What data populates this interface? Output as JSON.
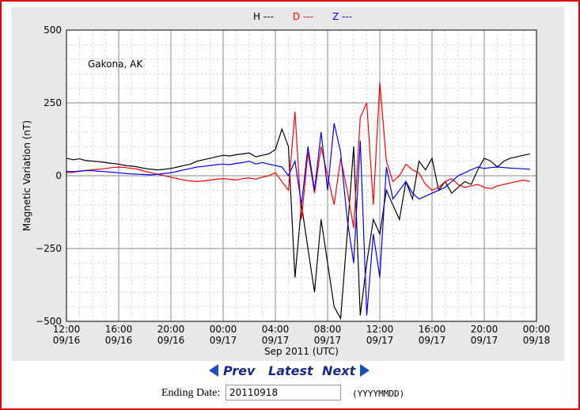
{
  "chart_data": {
    "type": "line",
    "station_label": "Gakona, AK",
    "ylabel": "Magnetic Variation (nT)",
    "xlabel": "Sep 2011 (UTC)",
    "ylim": [
      -500,
      500
    ],
    "yticks": [
      500,
      250,
      0,
      -250,
      -500
    ],
    "ytick_labels": [
      "500",
      "250",
      "0",
      "−250",
      "−500"
    ],
    "xlim": [
      0,
      36
    ],
    "xticks": [
      0,
      4,
      8,
      12,
      16,
      20,
      24,
      28,
      32,
      36
    ],
    "xtick_labels_time": [
      "12:00",
      "16:00",
      "20:00",
      "00:00",
      "04:00",
      "08:00",
      "12:00",
      "16:00",
      "20:00",
      "00:00"
    ],
    "xtick_labels_date": [
      "09/16",
      "09/16",
      "09/16",
      "09/17",
      "09/17",
      "09/17",
      "09/17",
      "09/17",
      "09/17",
      "09/18"
    ],
    "grid": true,
    "legend_position": "top-center",
    "series": [
      {
        "name": "H ---",
        "color": "#000000",
        "x": [
          0,
          0.5,
          1,
          1.5,
          2,
          2.5,
          3,
          3.5,
          4,
          4.5,
          5,
          5.5,
          6,
          6.5,
          7,
          7.5,
          8,
          8.5,
          9,
          9.5,
          10,
          10.5,
          11,
          11.5,
          12,
          12.5,
          13,
          13.5,
          14,
          14.5,
          15,
          15.5,
          16,
          16.5,
          17,
          17.5,
          18,
          18.5,
          19,
          19.5,
          20,
          20.5,
          21,
          21.5,
          22,
          22.5,
          23,
          23.5,
          24,
          24.5,
          25,
          25.5,
          26,
          26.5,
          27,
          27.5,
          28,
          28.5,
          29,
          29.5,
          30,
          30.5,
          31,
          31.5,
          32,
          32.5,
          33,
          33.5,
          34,
          34.5,
          35,
          35.5
        ],
        "y": [
          60,
          55,
          58,
          52,
          50,
          48,
          45,
          42,
          40,
          35,
          33,
          30,
          25,
          22,
          20,
          22,
          25,
          30,
          35,
          40,
          50,
          55,
          60,
          65,
          70,
          68,
          72,
          75,
          78,
          65,
          70,
          75,
          90,
          160,
          100,
          -350,
          -100,
          -250,
          -400,
          -150,
          -300,
          -450,
          -490,
          -200,
          100,
          -480,
          -300,
          -150,
          -200,
          -50,
          -100,
          -150,
          -20,
          -80,
          50,
          20,
          60,
          -50,
          -20,
          -60,
          -40,
          -20,
          -30,
          20,
          60,
          50,
          30,
          50,
          60,
          65,
          70,
          75
        ]
      },
      {
        "name": "D ---",
        "color": "#ff0000",
        "x": [
          0,
          0.5,
          1,
          1.5,
          2,
          2.5,
          3,
          3.5,
          4,
          4.5,
          5,
          5.5,
          6,
          6.5,
          7,
          7.5,
          8,
          8.5,
          9,
          9.5,
          10,
          10.5,
          11,
          11.5,
          12,
          12.5,
          13,
          13.5,
          14,
          14.5,
          15,
          15.5,
          16,
          16.5,
          17,
          17.5,
          18,
          18.5,
          19,
          19.5,
          20,
          20.5,
          21,
          21.5,
          22,
          22.5,
          23,
          23.5,
          24,
          24.5,
          25,
          25.5,
          26,
          26.5,
          27,
          27.5,
          28,
          28.5,
          29,
          29.5,
          30,
          30.5,
          31,
          31.5,
          32,
          32.5,
          33,
          33.5,
          34,
          34.5,
          35,
          35.5
        ],
        "y": [
          10,
          12,
          15,
          18,
          20,
          22,
          25,
          28,
          30,
          28,
          25,
          22,
          15,
          10,
          5,
          0,
          -5,
          -10,
          -15,
          -18,
          -20,
          -18,
          -15,
          -12,
          -10,
          -12,
          -15,
          -10,
          -8,
          -12,
          -5,
          0,
          10,
          -20,
          -50,
          220,
          -150,
          80,
          -60,
          100,
          0,
          -100,
          60,
          -50,
          -180,
          200,
          250,
          -100,
          320,
          50,
          -20,
          0,
          40,
          20,
          10,
          -30,
          -50,
          -40,
          -20,
          -10,
          -30,
          -40,
          -35,
          -30,
          -40,
          -45,
          -35,
          -30,
          -25,
          -20,
          -15,
          -20
        ]
      },
      {
        "name": "Z ---",
        "color": "#0000ff",
        "x": [
          0,
          0.5,
          1,
          1.5,
          2,
          2.5,
          3,
          3.5,
          4,
          4.5,
          5,
          5.5,
          6,
          6.5,
          7,
          7.5,
          8,
          8.5,
          9,
          9.5,
          10,
          10.5,
          11,
          11.5,
          12,
          12.5,
          13,
          13.5,
          14,
          14.5,
          15,
          15.5,
          16,
          16.5,
          17,
          17.5,
          18,
          18.5,
          19,
          19.5,
          20,
          20.5,
          21,
          21.5,
          22,
          22.5,
          23,
          23.5,
          24,
          24.5,
          25,
          25.5,
          26,
          26.5,
          27,
          27.5,
          28,
          28.5,
          29,
          29.5,
          30,
          30.5,
          31,
          31.5,
          32,
          32.5,
          33,
          33.5,
          34,
          34.5,
          35,
          35.5
        ],
        "y": [
          15,
          14,
          16,
          18,
          17,
          15,
          14,
          12,
          10,
          8,
          6,
          5,
          4,
          3,
          5,
          8,
          10,
          15,
          20,
          25,
          30,
          32,
          35,
          38,
          40,
          38,
          42,
          45,
          50,
          40,
          45,
          40,
          35,
          30,
          0,
          50,
          -100,
          100,
          -50,
          150,
          -50,
          180,
          80,
          -150,
          -300,
          120,
          -480,
          -200,
          -350,
          30,
          -80,
          -50,
          -20,
          -60,
          -80,
          -70,
          -60,
          -50,
          -40,
          -20,
          0,
          10,
          20,
          30,
          25,
          28,
          30,
          28,
          26,
          25,
          24,
          22
        ]
      }
    ]
  },
  "nav": {
    "prev": "Prev",
    "latest": "Latest",
    "next": "Next"
  },
  "ending_date": {
    "label": "Ending Date:",
    "value": "20110918",
    "format_hint": "(YYYYMMDD)"
  }
}
